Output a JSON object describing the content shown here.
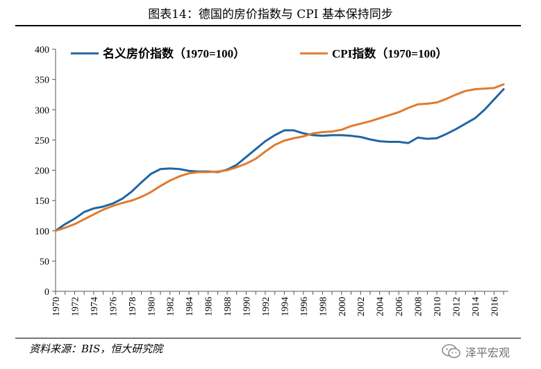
{
  "header": {
    "title": "图表14：德国的房价指数与 CPI 基本保持同步"
  },
  "footer": {
    "source": "资料来源：BIS，恒大研究院",
    "watermark": "泽平宏观"
  },
  "chart_data": {
    "type": "line",
    "title": "图表14：德国的房价指数与 CPI 基本保持同步",
    "xlabel": "",
    "ylabel": "",
    "xlim": [
      1970,
      2017.5
    ],
    "ylim": [
      0,
      400
    ],
    "yticks": [
      0,
      50,
      100,
      150,
      200,
      250,
      300,
      350,
      400
    ],
    "xticks": [
      1970,
      1972,
      1974,
      1976,
      1978,
      1980,
      1982,
      1984,
      1986,
      1988,
      1990,
      1992,
      1994,
      1996,
      1998,
      2000,
      2002,
      2004,
      2006,
      2008,
      2010,
      2012,
      2014,
      2016
    ],
    "legend": "top",
    "grid": false,
    "series": [
      {
        "name": "名义房价指数（1970=100）",
        "color": "#2165a2",
        "x": [
          1970,
          1971,
          1972,
          1973,
          1974,
          1975,
          1976,
          1977,
          1978,
          1979,
          1980,
          1981,
          1982,
          1983,
          1984,
          1985,
          1986,
          1987,
          1988,
          1989,
          1990,
          1991,
          1992,
          1993,
          1994,
          1995,
          1996,
          1997,
          1998,
          1999,
          2000,
          2001,
          2002,
          2003,
          2004,
          2005,
          2006,
          2007,
          2008,
          2009,
          2010,
          2011,
          2012,
          2013,
          2014,
          2015,
          2016,
          2017
        ],
        "values": [
          100,
          111,
          120,
          131,
          137,
          140,
          145,
          153,
          165,
          180,
          194,
          202,
          203,
          202,
          199,
          198,
          198,
          197,
          201,
          209,
          222,
          235,
          248,
          258,
          266,
          266,
          261,
          258,
          257,
          258,
          258,
          257,
          255,
          251,
          248,
          247,
          247,
          245,
          254,
          252,
          253,
          260,
          268,
          277,
          286,
          300,
          317,
          334
        ]
      },
      {
        "name": "CPI指数（1970=100）",
        "color": "#e07b2e",
        "x": [
          1970,
          1971,
          1972,
          1973,
          1974,
          1975,
          1976,
          1977,
          1978,
          1979,
          1980,
          1981,
          1982,
          1983,
          1984,
          1985,
          1986,
          1987,
          1988,
          1989,
          1990,
          1991,
          1992,
          1993,
          1994,
          1995,
          1996,
          1997,
          1998,
          1999,
          2000,
          2001,
          2002,
          2003,
          2004,
          2005,
          2006,
          2007,
          2008,
          2009,
          2010,
          2011,
          2012,
          2013,
          2014,
          2015,
          2016,
          2017
        ],
        "values": [
          100,
          105,
          111,
          119,
          127,
          135,
          141,
          146,
          150,
          156,
          164,
          174,
          183,
          190,
          195,
          197,
          197,
          198,
          200,
          205,
          211,
          219,
          231,
          242,
          249,
          253,
          256,
          261,
          263,
          264,
          267,
          273,
          277,
          281,
          286,
          291,
          296,
          303,
          309,
          310,
          312,
          318,
          325,
          331,
          334,
          335,
          336,
          342
        ]
      }
    ]
  }
}
